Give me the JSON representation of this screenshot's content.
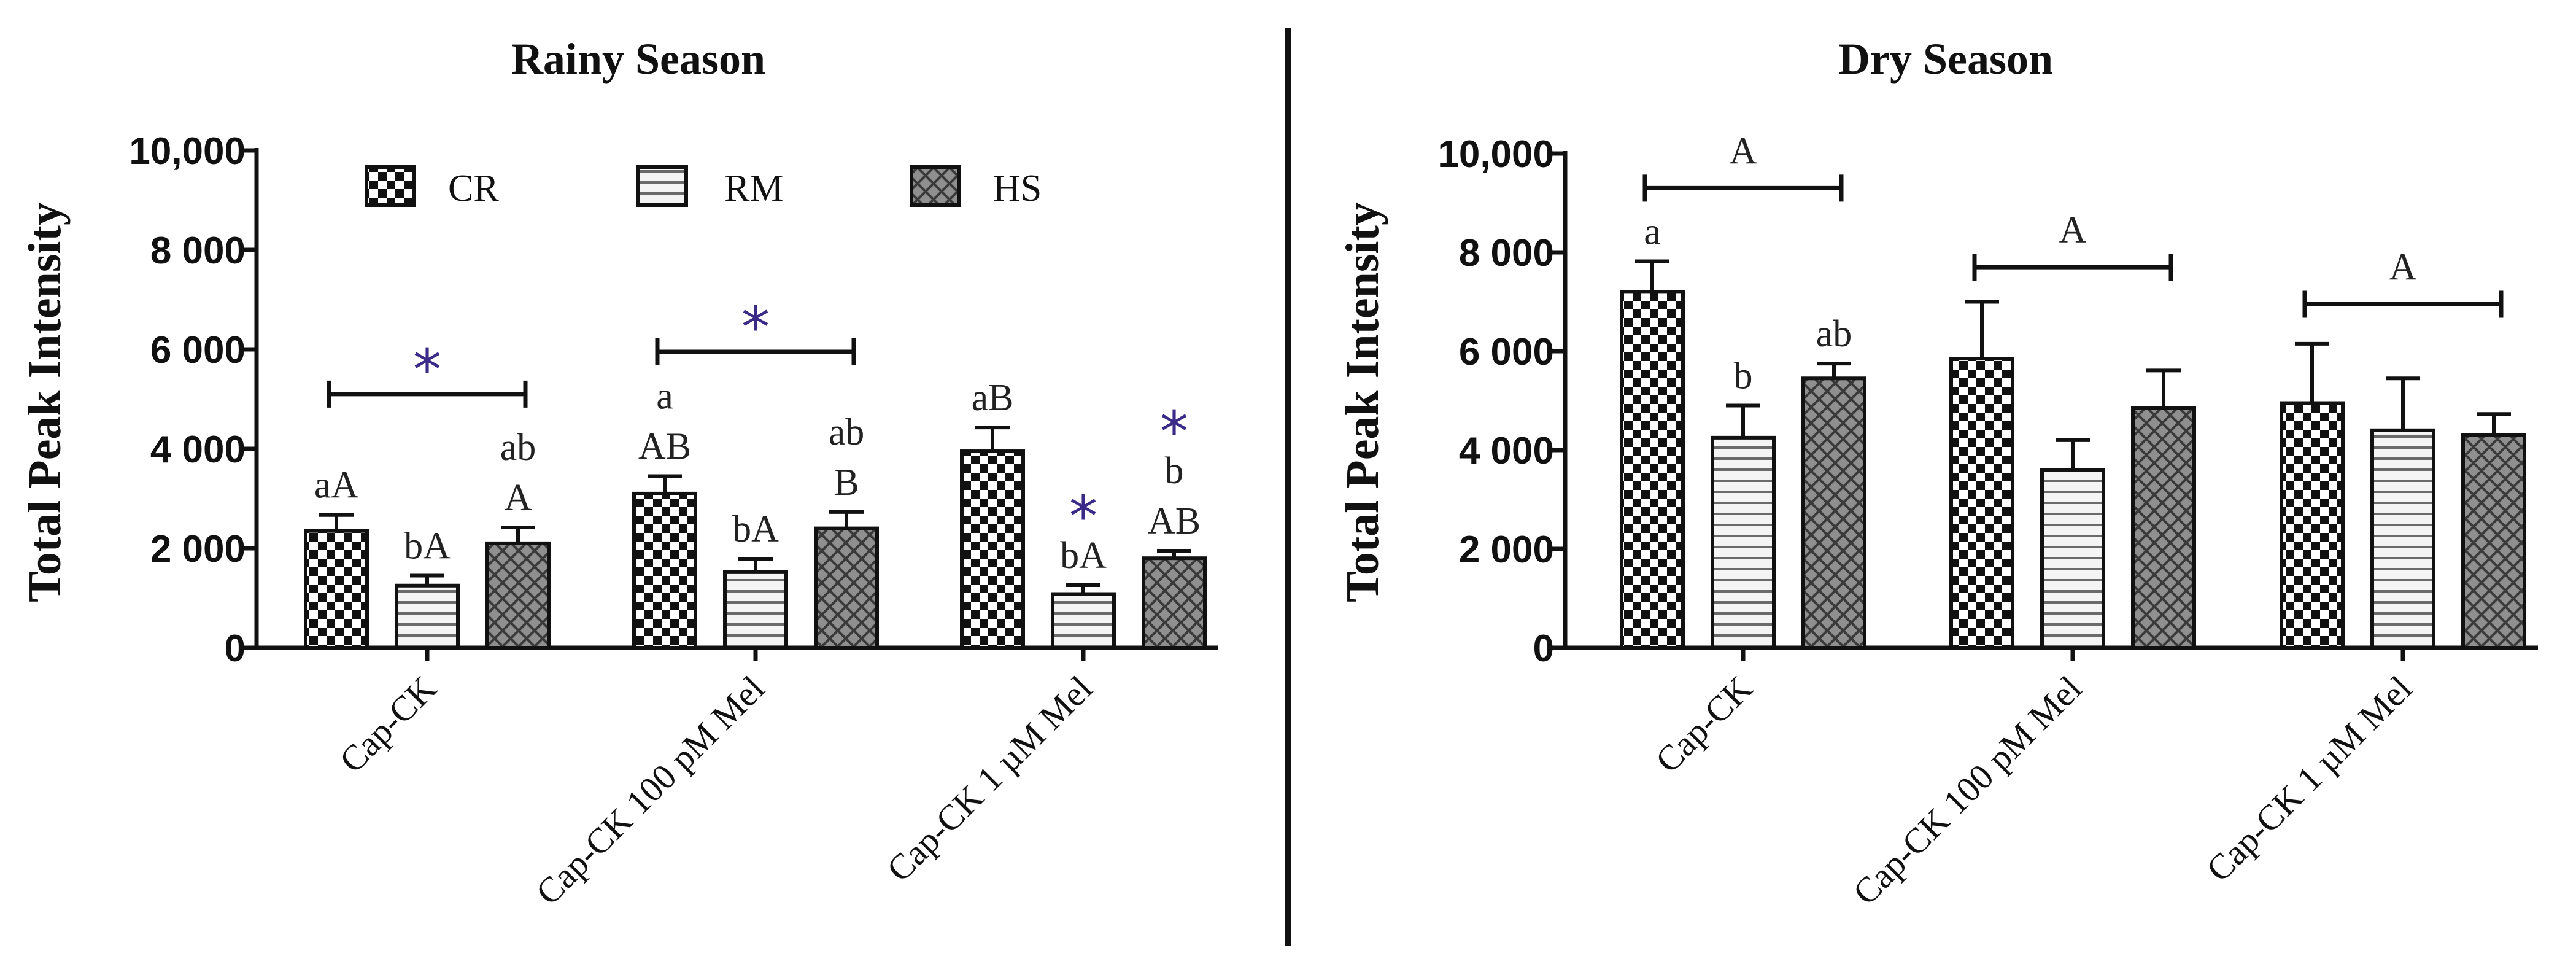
{
  "chart_data": [
    {
      "type": "bar",
      "title": "Rainy Season",
      "ylabel": "Total Peak Intensity",
      "xlabel": "",
      "ylim": [
        0,
        10000
      ],
      "yticks": [
        0,
        2000,
        4000,
        6000,
        8000,
        10000
      ],
      "ytick_labels": [
        "0",
        "2 000",
        "4 000",
        "6 000",
        "8 000",
        "10,000"
      ],
      "categories": [
        "Cap-CK",
        "Cap-CK 100 pM Mel",
        "Cap-CK 1 µM Mel"
      ],
      "legend": {
        "position": "top",
        "entries": [
          "CR",
          "RM",
          "HS"
        ]
      },
      "series": [
        {
          "name": "CR",
          "pattern": "checker",
          "values": [
            2350,
            3100,
            3950
          ],
          "errors": [
            320,
            350,
            480
          ]
        },
        {
          "name": "RM",
          "pattern": "hstripe",
          "values": [
            1250,
            1520,
            1080
          ],
          "errors": [
            200,
            270,
            180
          ]
        },
        {
          "name": "HS",
          "pattern": "crosshatch",
          "values": [
            2100,
            2400,
            1800
          ],
          "errors": [
            320,
            330,
            150
          ]
        }
      ],
      "annotations": [
        {
          "cat": 0,
          "series": 0,
          "lines": [
            "aA"
          ]
        },
        {
          "cat": 0,
          "series": 1,
          "lines": [
            "bA"
          ]
        },
        {
          "cat": 0,
          "series": 2,
          "lines": [
            "ab",
            "A"
          ]
        },
        {
          "cat": 1,
          "series": 0,
          "lines": [
            "a",
            "AB"
          ]
        },
        {
          "cat": 1,
          "series": 1,
          "lines": [
            "bA"
          ]
        },
        {
          "cat": 1,
          "series": 2,
          "lines": [
            "ab",
            "B"
          ]
        },
        {
          "cat": 2,
          "series": 0,
          "lines": [
            "aB"
          ]
        },
        {
          "cat": 2,
          "series": 1,
          "lines": [
            "bA"
          ]
        },
        {
          "cat": 2,
          "series": 2,
          "lines": [
            "b",
            "AB"
          ]
        }
      ],
      "brackets": [
        {
          "cat": 0,
          "y": 5100,
          "label": "*"
        },
        {
          "cat": 1,
          "y": 5950,
          "label": "*"
        }
      ],
      "stars": [
        {
          "cat": 2,
          "series": 1,
          "label": "*"
        },
        {
          "cat": 2,
          "series": 2,
          "label": "*"
        }
      ]
    },
    {
      "type": "bar",
      "title": "Dry Season",
      "ylabel": "Total Peak Intensity",
      "xlabel": "",
      "ylim": [
        0,
        10000
      ],
      "yticks": [
        0,
        2000,
        4000,
        6000,
        8000,
        10000
      ],
      "ytick_labels": [
        "0",
        "2 000",
        "4 000",
        "6 000",
        "8 000",
        "10,000"
      ],
      "categories": [
        "Cap-CK",
        "Cap-CK 100 pM Mel",
        "Cap-CK 1 µM Mel"
      ],
      "series": [
        {
          "name": "CR",
          "pattern": "checker",
          "values": [
            7200,
            5850,
            4950
          ],
          "errors": [
            620,
            1150,
            1200
          ]
        },
        {
          "name": "RM",
          "pattern": "hstripe",
          "values": [
            4250,
            3600,
            4400
          ],
          "errors": [
            650,
            600,
            1050
          ]
        },
        {
          "name": "HS",
          "pattern": "crosshatch",
          "values": [
            5450,
            4850,
            4300
          ],
          "errors": [
            300,
            760,
            430
          ]
        }
      ],
      "annotations": [
        {
          "cat": 0,
          "series": 0,
          "lines": [
            "a"
          ]
        },
        {
          "cat": 0,
          "series": 1,
          "lines": [
            "b"
          ]
        },
        {
          "cat": 0,
          "series": 2,
          "lines": [
            "ab"
          ]
        }
      ],
      "brackets": [
        {
          "cat": 0,
          "y": 9300,
          "label": "A"
        },
        {
          "cat": 1,
          "y": 7700,
          "label": "A"
        },
        {
          "cat": 2,
          "y": 6950,
          "label": "A"
        }
      ],
      "stars": []
    }
  ]
}
